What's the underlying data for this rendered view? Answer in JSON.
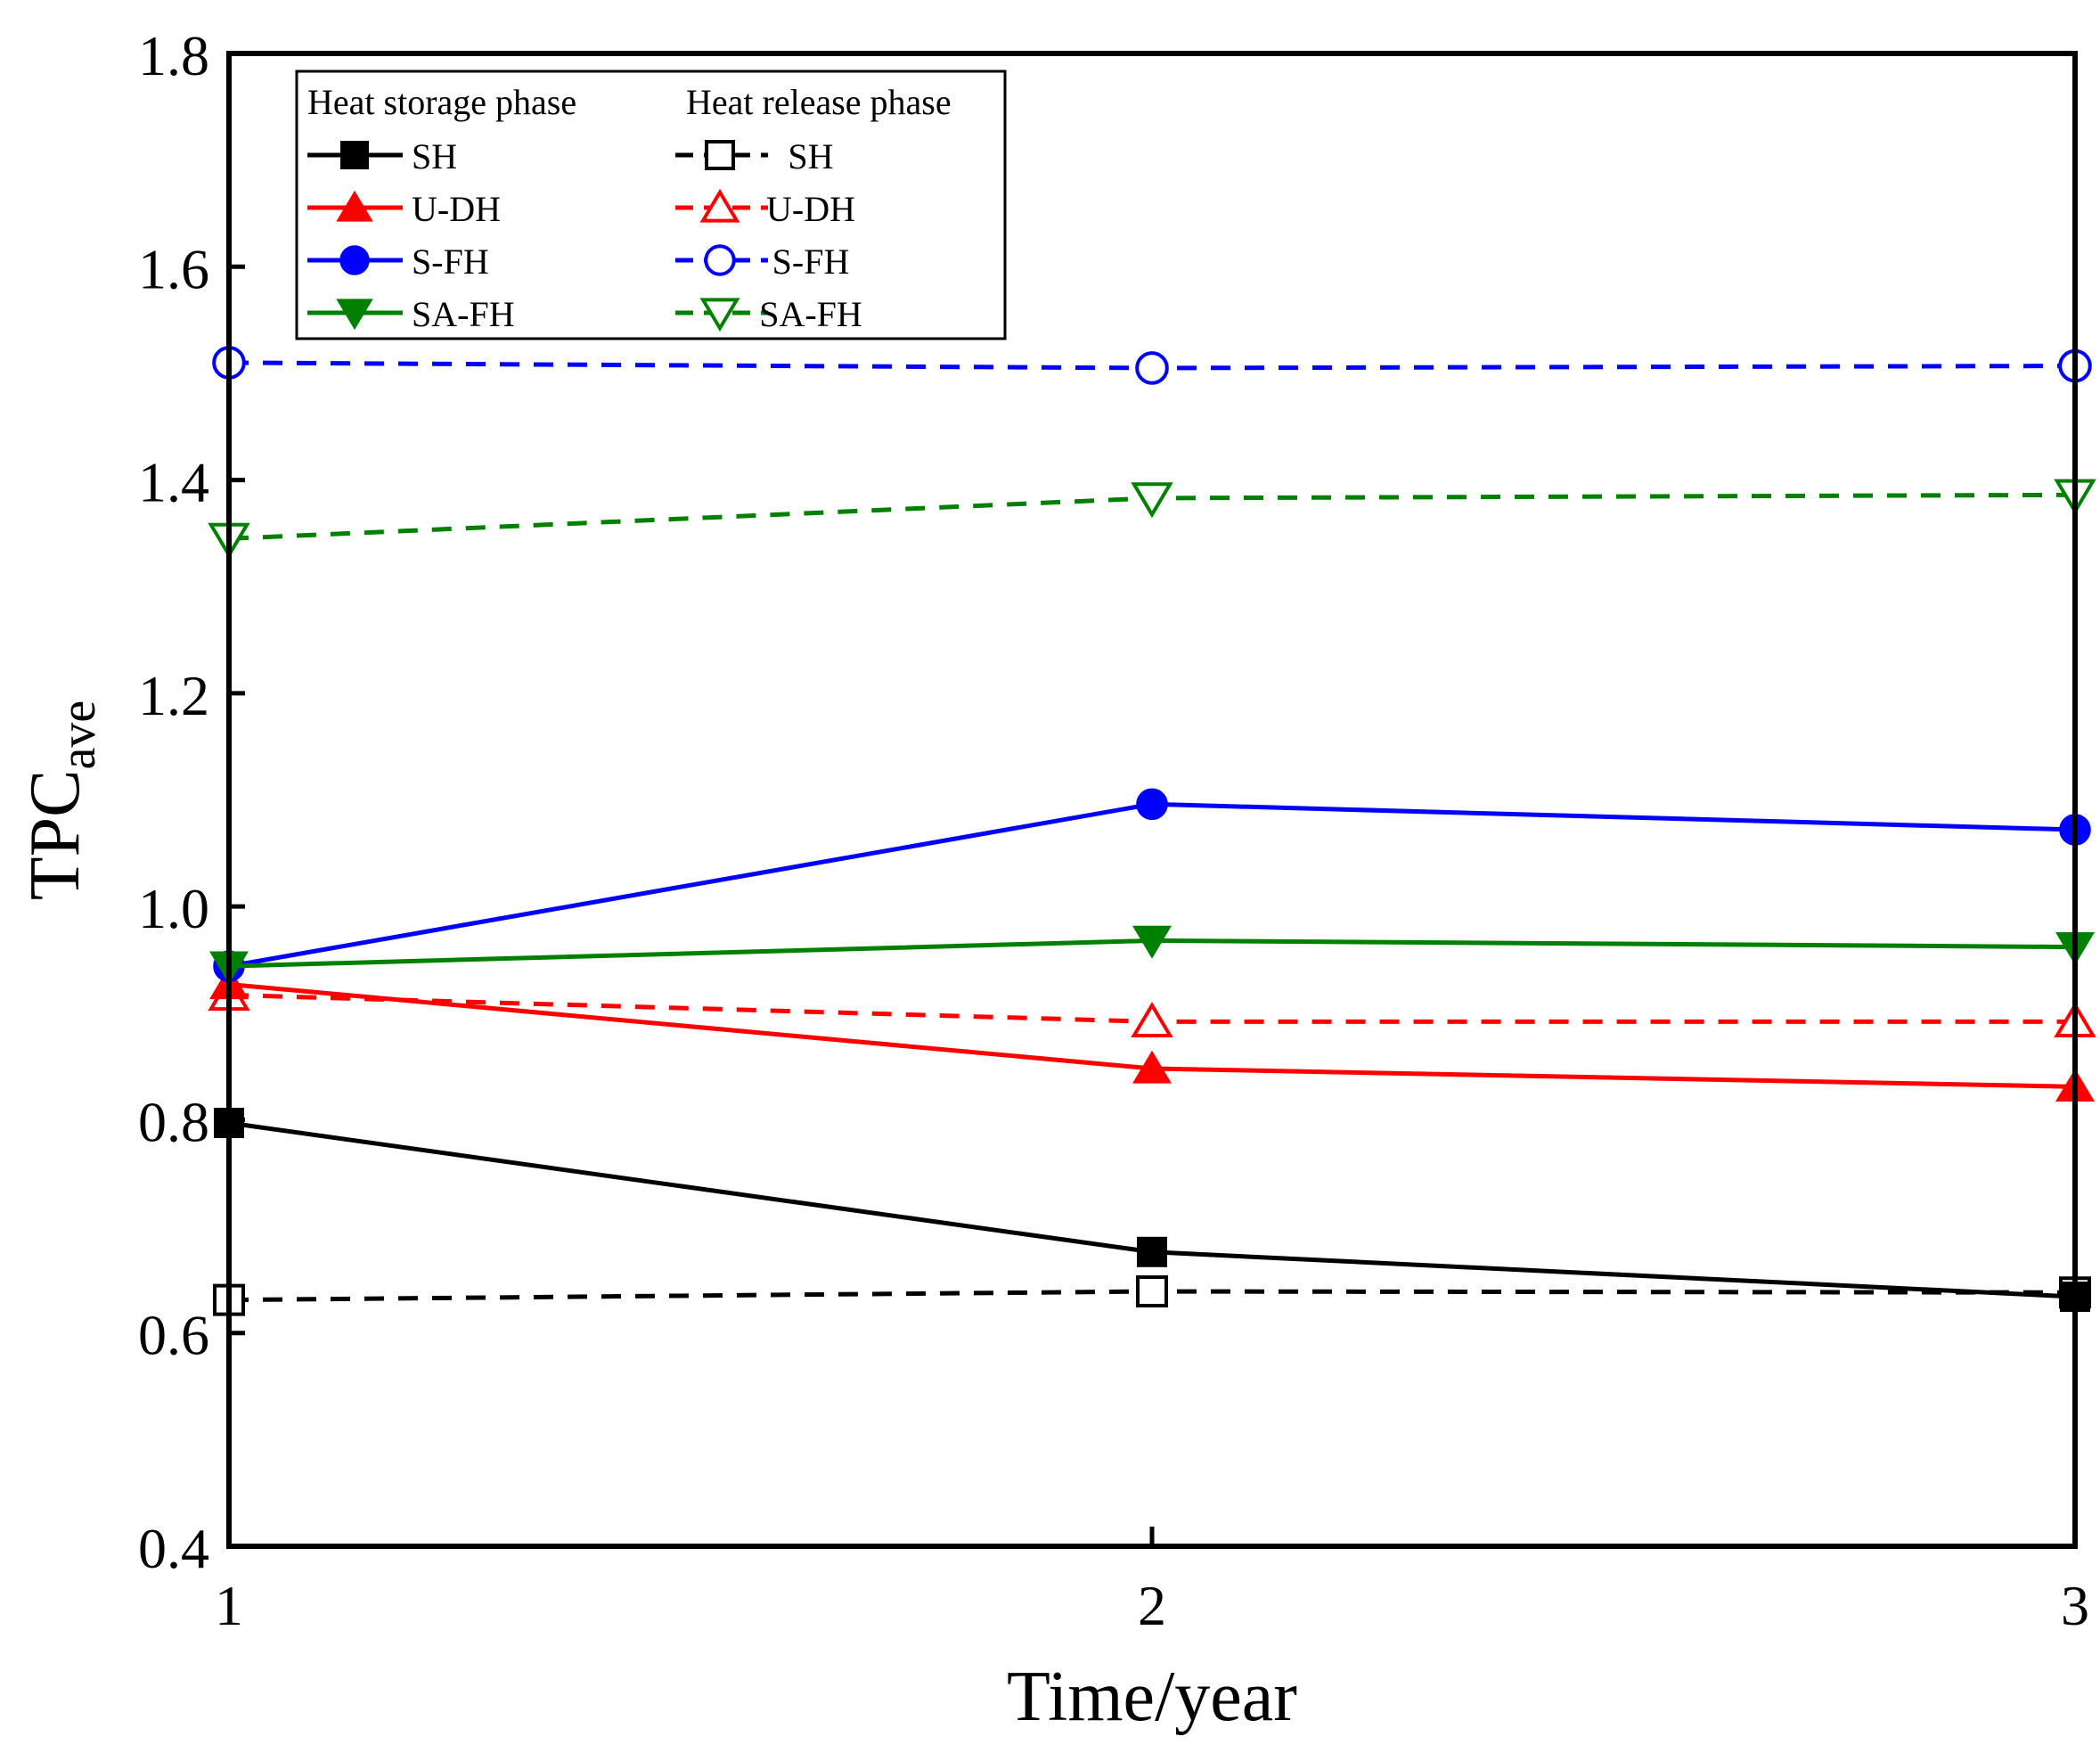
{
  "chart_data": {
    "type": "line",
    "xlabel": "Time/year",
    "ylabel_main": "TPC",
    "ylabel_sub": "ave",
    "xlim": [
      1,
      3
    ],
    "ylim": [
      0.4,
      1.8
    ],
    "xticks": [
      "1",
      "2",
      "3"
    ],
    "yticks": [
      "0.4",
      "0.6",
      "0.8",
      "1.0",
      "1.2",
      "1.4",
      "1.6",
      "1.8"
    ],
    "x": [
      1,
      2,
      3
    ],
    "legend": {
      "placement": "top-left",
      "group_left": "Heat storage phase",
      "group_right": "Heat release phase"
    },
    "series": [
      {
        "name": "SH",
        "phase": "storage",
        "color": "#000000",
        "marker": "square",
        "filled": true,
        "dashed": false,
        "values": [
          0.797,
          0.676,
          0.634
        ]
      },
      {
        "name": "U-DH",
        "phase": "storage",
        "color": "#ff0000",
        "marker": "triangle-up",
        "filled": true,
        "dashed": false,
        "values": [
          0.927,
          0.848,
          0.831
        ]
      },
      {
        "name": "S-FH",
        "phase": "storage",
        "color": "#0000ff",
        "marker": "circle",
        "filled": true,
        "dashed": false,
        "values": [
          0.944,
          1.096,
          1.072
        ]
      },
      {
        "name": "SA-FH",
        "phase": "storage",
        "color": "#008000",
        "marker": "triangle-down",
        "filled": true,
        "dashed": false,
        "values": [
          0.944,
          0.968,
          0.962
        ]
      },
      {
        "name": "SH",
        "phase": "release",
        "color": "#000000",
        "marker": "square",
        "filled": false,
        "dashed": true,
        "values": [
          0.631,
          0.639,
          0.638
        ]
      },
      {
        "name": "U-DH",
        "phase": "release",
        "color": "#ff0000",
        "marker": "triangle-up",
        "filled": false,
        "dashed": true,
        "values": [
          0.917,
          0.892,
          0.892
        ]
      },
      {
        "name": "S-FH",
        "phase": "release",
        "color": "#0000ff",
        "marker": "circle",
        "filled": false,
        "dashed": true,
        "values": [
          1.51,
          1.505,
          1.507
        ]
      },
      {
        "name": "SA-FH",
        "phase": "release",
        "color": "#008000",
        "marker": "triangle-down",
        "filled": false,
        "dashed": true,
        "values": [
          1.345,
          1.383,
          1.386
        ]
      }
    ]
  }
}
